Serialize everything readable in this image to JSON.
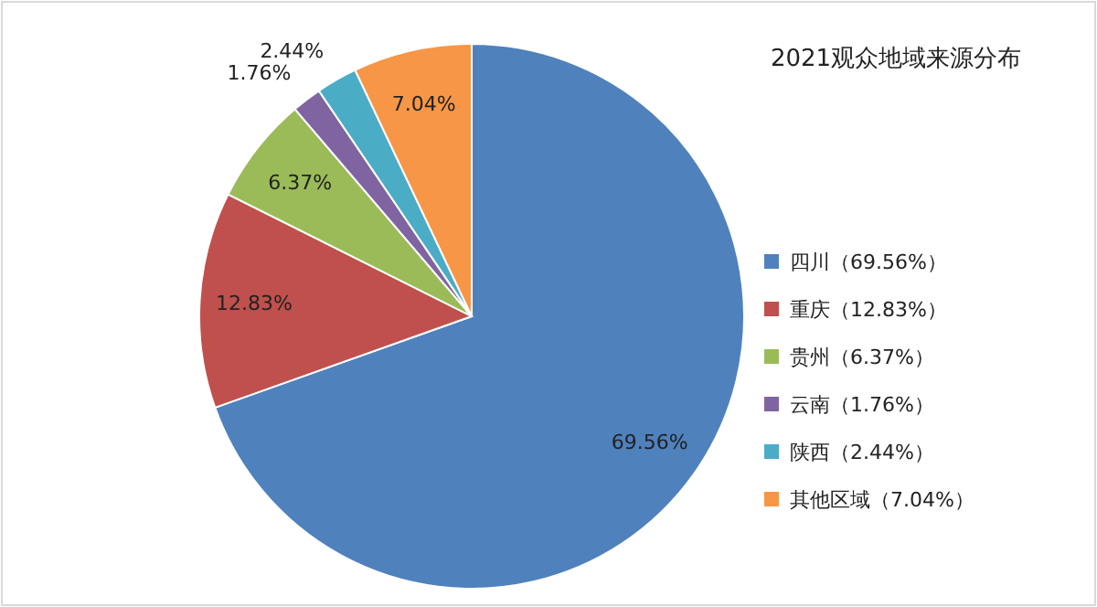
{
  "chart_data": {
    "type": "pie",
    "title": "2021观众地域来源分布",
    "categories": [
      "四川（69.56%）",
      "重庆（12.83%）",
      "贵州（6.37%）",
      "云南（1.76%）",
      "陕西（2.44%）",
      "其他区域（7.04%）"
    ],
    "values": [
      69.56,
      12.83,
      6.37,
      1.76,
      2.44,
      7.04
    ],
    "value_labels": [
      "69.56%",
      "12.83%",
      "6.37%",
      "1.76%",
      "2.44%",
      "7.04%"
    ],
    "colors": [
      "#4f81bd",
      "#c0504d",
      "#9bbb59",
      "#8064a2",
      "#4bacc6",
      "#f79646"
    ],
    "legend": "right"
  }
}
